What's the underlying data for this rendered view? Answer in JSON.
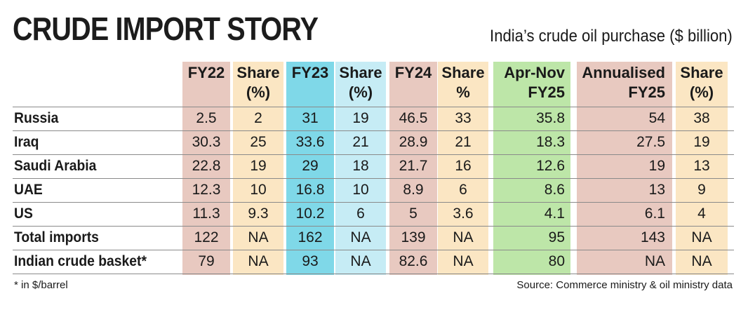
{
  "title": "CRUDE IMPORT STORY",
  "subtitle": "India’s crude oil purchase ($ billion)",
  "footnote": "* in $/barrel",
  "source": "Source: Commerce ministry & oil ministry data",
  "colors": {
    "fy22": "#e8c9c0",
    "share22": "#fbe6c3",
    "fy23": "#7fd8e8",
    "share23": "#c6ecf5",
    "fy24": "#e8c9c0",
    "share24": "#fbe6c3",
    "aprnov": "#bde6a8",
    "annual": "#e8c9c0",
    "shareannual": "#fbe6c3"
  },
  "chart_data": {
    "type": "table",
    "title": "CRUDE IMPORT STORY",
    "subtitle": "India’s crude oil purchase ($ billion)",
    "columns": [
      {
        "line1": "FY22",
        "line2": ""
      },
      {
        "line1": "Share",
        "line2": "(%)"
      },
      {
        "line1": "FY23",
        "line2": ""
      },
      {
        "line1": "Share",
        "line2": "(%)"
      },
      {
        "line1": "FY24",
        "line2": ""
      },
      {
        "line1": "Share",
        "line2": "%"
      },
      {
        "line1": "Apr-Nov",
        "line2": "FY25"
      },
      {
        "line1": "Annualised",
        "line2": "FY25"
      },
      {
        "line1": "Share",
        "line2": "(%)"
      }
    ],
    "rows": [
      {
        "label": "Russia",
        "values": [
          "2.5",
          "2",
          "31",
          "19",
          "46.5",
          "33",
          "35.8",
          "54",
          "38"
        ]
      },
      {
        "label": "Iraq",
        "values": [
          "30.3",
          "25",
          "33.6",
          "21",
          "28.9",
          "21",
          "18.3",
          "27.5",
          "19"
        ]
      },
      {
        "label": "Saudi Arabia",
        "values": [
          "22.8",
          "19",
          "29",
          "18",
          "21.7",
          "16",
          "12.6",
          "19",
          "13"
        ]
      },
      {
        "label": "UAE",
        "values": [
          "12.3",
          "10",
          "16.8",
          "10",
          "8.9",
          "6",
          "8.6",
          "13",
          "9"
        ]
      },
      {
        "label": "US",
        "values": [
          "11.3",
          "9.3",
          "10.2",
          "6",
          "5",
          "3.6",
          "4.1",
          "6.1",
          "4"
        ]
      },
      {
        "label": "Total imports",
        "values": [
          "122",
          "NA",
          "162",
          "NA",
          "139",
          "NA",
          "95",
          "143",
          "NA"
        ]
      },
      {
        "label": "Indian crude basket*",
        "values": [
          "79",
          "NA",
          "93",
          "NA",
          "82.6",
          "NA",
          "80",
          "NA",
          "NA"
        ]
      }
    ]
  }
}
